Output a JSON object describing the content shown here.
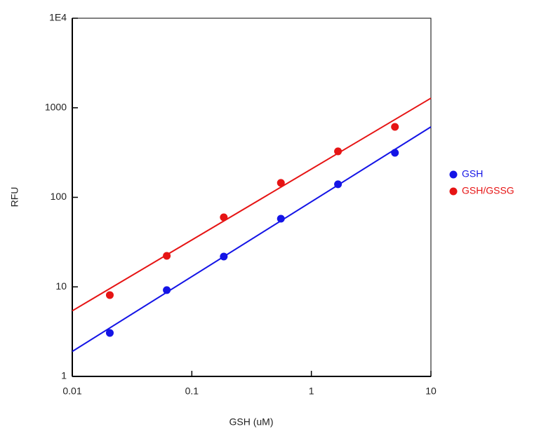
{
  "chart_data": {
    "type": "scatter",
    "x_label": "GSH (uM)",
    "y_label": "RFU",
    "xscale": "log",
    "yscale": "log",
    "xlim": [
      0.01,
      10
    ],
    "ylim": [
      1,
      10000
    ],
    "xticks": [
      0.01,
      0.1,
      1,
      10
    ],
    "yticks": [
      1,
      10,
      100,
      1000,
      {
        "value": 10000,
        "label": "1E4"
      }
    ],
    "legend": "right",
    "series": [
      {
        "name": "GSH",
        "color": "#1414e6",
        "x": [
          0.0206,
          0.0617,
          0.185,
          0.556,
          1.67,
          5
        ],
        "values": [
          3.06,
          9.2,
          21.8,
          57.7,
          140,
          314
        ],
        "fit": {
          "x": [
            0.01,
            10
          ],
          "values": [
            1.9,
            612
          ]
        }
      },
      {
        "name": "GSH/GSSG",
        "color": "#e61414",
        "x": [
          0.0206,
          0.0617,
          0.185,
          0.556,
          1.67,
          5
        ],
        "values": [
          8.1,
          22.2,
          59.8,
          145,
          326,
          612
        ],
        "fit": {
          "x": [
            0.01,
            10
          ],
          "values": [
            5.4,
            1280
          ]
        }
      }
    ]
  }
}
